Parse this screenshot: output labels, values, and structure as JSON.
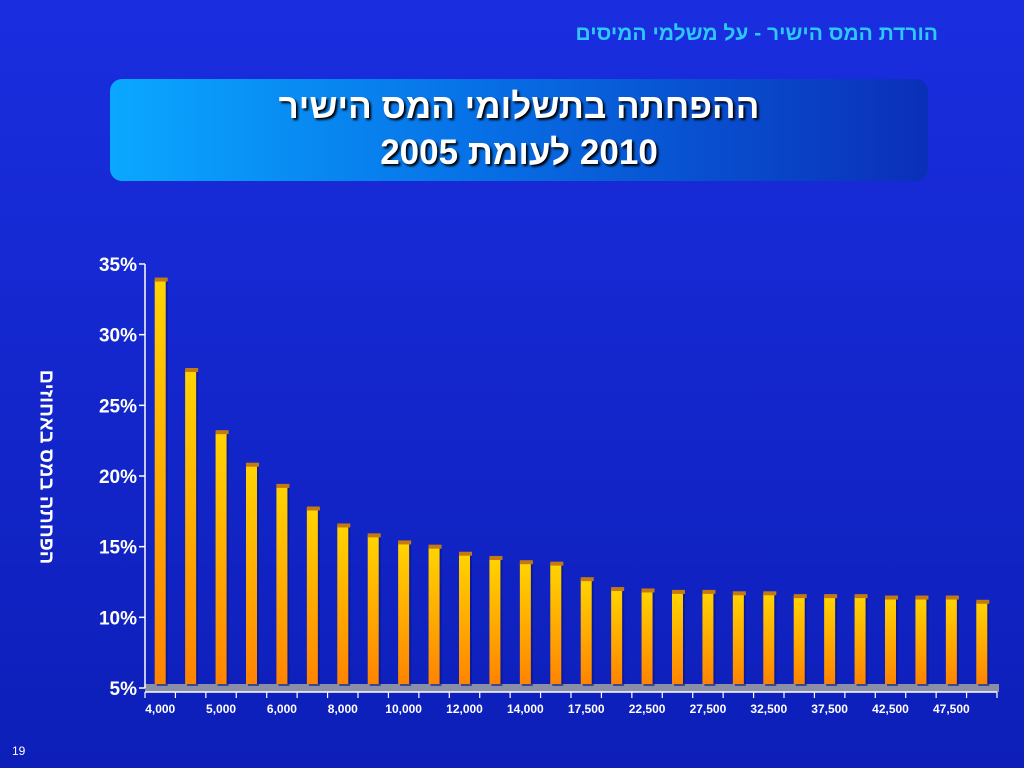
{
  "header": {
    "text": "הורדת המס הישיר - על משלמי המיסים"
  },
  "title": {
    "line1": "ההפחתה בתשלומי המס הישיר",
    "line2": "2010 לעומת 2005"
  },
  "page_number": "19",
  "colors": {
    "background": "#1225d0",
    "bar_top": "#ffd400",
    "bar_bottom": "#ff8a00",
    "header": "#2ec8ff"
  },
  "chart_data": {
    "type": "bar",
    "ylabel": "הפחתה במס באחוזים",
    "ylim": [
      5,
      35
    ],
    "yticks": [
      "5%",
      "10%",
      "15%",
      "20%",
      "25%",
      "30%",
      "35%"
    ],
    "x_tick_labels": [
      "4,000",
      "5,000",
      "6,000",
      "8,000",
      "10,000",
      "12,000",
      "14,000",
      "17,500",
      "22,500",
      "27,500",
      "32,500",
      "37,500",
      "42,500",
      "47,500"
    ],
    "values": [
      33.9,
      27.5,
      23.1,
      20.8,
      19.3,
      17.7,
      16.5,
      15.8,
      15.3,
      15.0,
      14.5,
      14.2,
      13.9,
      13.8,
      12.7,
      12.0,
      11.9,
      11.8,
      11.8,
      11.7,
      11.7,
      11.5,
      11.5,
      11.5,
      11.4,
      11.4,
      11.4,
      11.1
    ]
  }
}
